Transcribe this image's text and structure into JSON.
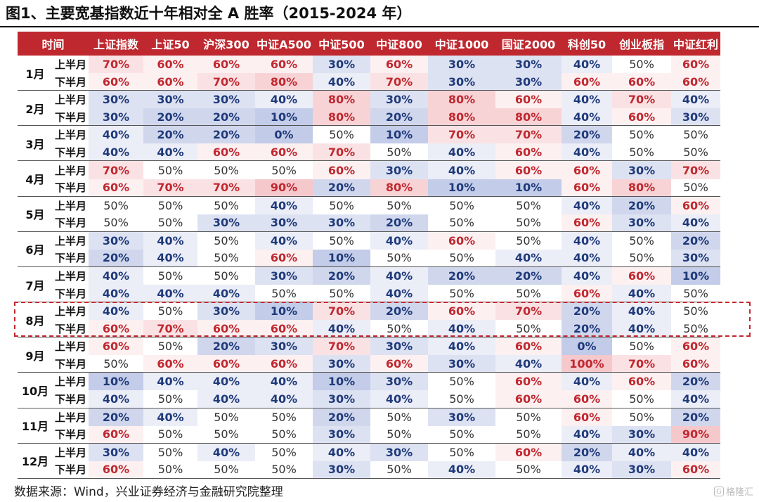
{
  "title": "图1、主要宽基指数近十年相对全 A 胜率（2015-2024 年）",
  "source": "数据来源：Wind，兴业证券经济与金融研究院整理",
  "watermark": "格隆汇",
  "colors": {
    "header_bg": "#c0282f",
    "high_text": "#c0282f",
    "low_text": "#1f3a7a",
    "neutral_text": "#333333",
    "highlight_border": "#c0282f"
  },
  "table": {
    "time_header": "时间",
    "columns": [
      "上证指数",
      "上证50",
      "沪深300",
      "中证A500",
      "中证500",
      "中证800",
      "中证1000",
      "国证2000",
      "科创50",
      "创业板指",
      "中证红利"
    ],
    "half_labels": [
      "上半月",
      "下半月"
    ],
    "highlight_month": "8月",
    "months": [
      {
        "label": "1月",
        "rows": [
          [
            "70%",
            "60%",
            "60%",
            "60%",
            "30%",
            "60%",
            "30%",
            "30%",
            "40%",
            "50%",
            "60%"
          ],
          [
            "60%",
            "60%",
            "70%",
            "80%",
            "40%",
            "70%",
            "30%",
            "30%",
            "60%",
            "60%",
            "60%"
          ]
        ]
      },
      {
        "label": "2月",
        "rows": [
          [
            "30%",
            "30%",
            "30%",
            "40%",
            "80%",
            "30%",
            "80%",
            "60%",
            "40%",
            "70%",
            "40%"
          ],
          [
            "30%",
            "20%",
            "20%",
            "10%",
            "80%",
            "20%",
            "80%",
            "80%",
            "40%",
            "60%",
            "30%"
          ]
        ]
      },
      {
        "label": "3月",
        "rows": [
          [
            "40%",
            "20%",
            "20%",
            "0%",
            "50%",
            "10%",
            "70%",
            "70%",
            "20%",
            "50%",
            "50%"
          ],
          [
            "40%",
            "40%",
            "60%",
            "60%",
            "70%",
            "50%",
            "40%",
            "60%",
            "40%",
            "50%",
            "50%"
          ]
        ]
      },
      {
        "label": "4月",
        "rows": [
          [
            "70%",
            "50%",
            "50%",
            "50%",
            "60%",
            "30%",
            "40%",
            "60%",
            "60%",
            "30%",
            "70%"
          ],
          [
            "60%",
            "70%",
            "70%",
            "90%",
            "20%",
            "80%",
            "10%",
            "10%",
            "60%",
            "80%",
            "50%"
          ]
        ]
      },
      {
        "label": "5月",
        "rows": [
          [
            "50%",
            "50%",
            "50%",
            "40%",
            "50%",
            "50%",
            "50%",
            "50%",
            "40%",
            "20%",
            "60%"
          ],
          [
            "50%",
            "50%",
            "30%",
            "30%",
            "30%",
            "20%",
            "50%",
            "50%",
            "60%",
            "30%",
            "40%"
          ]
        ]
      },
      {
        "label": "6月",
        "rows": [
          [
            "30%",
            "40%",
            "50%",
            "40%",
            "50%",
            "40%",
            "60%",
            "50%",
            "40%",
            "50%",
            "20%"
          ],
          [
            "20%",
            "40%",
            "50%",
            "60%",
            "10%",
            "50%",
            "50%",
            "40%",
            "40%",
            "50%",
            "30%"
          ]
        ]
      },
      {
        "label": "7月",
        "rows": [
          [
            "40%",
            "50%",
            "50%",
            "30%",
            "20%",
            "40%",
            "20%",
            "20%",
            "40%",
            "60%",
            "10%"
          ],
          [
            "40%",
            "40%",
            "40%",
            "50%",
            "50%",
            "40%",
            "50%",
            "50%",
            "60%",
            "40%",
            "50%"
          ]
        ]
      },
      {
        "label": "8月",
        "rows": [
          [
            "40%",
            "50%",
            "30%",
            "10%",
            "70%",
            "20%",
            "60%",
            "70%",
            "20%",
            "40%",
            "50%"
          ],
          [
            "60%",
            "70%",
            "60%",
            "60%",
            "40%",
            "50%",
            "40%",
            "50%",
            "20%",
            "40%",
            "50%"
          ]
        ]
      },
      {
        "label": "9月",
        "rows": [
          [
            "60%",
            "50%",
            "20%",
            "30%",
            "70%",
            "30%",
            "40%",
            "60%",
            "0%",
            "50%",
            "60%"
          ],
          [
            "50%",
            "60%",
            "60%",
            "60%",
            "30%",
            "60%",
            "30%",
            "40%",
            "100%",
            "70%",
            "60%"
          ]
        ]
      },
      {
        "label": "10月",
        "rows": [
          [
            "10%",
            "40%",
            "40%",
            "40%",
            "10%",
            "30%",
            "50%",
            "60%",
            "40%",
            "60%",
            "20%"
          ],
          [
            "40%",
            "50%",
            "40%",
            "40%",
            "30%",
            "40%",
            "50%",
            "60%",
            "60%",
            "50%",
            "40%"
          ]
        ]
      },
      {
        "label": "11月",
        "rows": [
          [
            "20%",
            "40%",
            "50%",
            "50%",
            "20%",
            "50%",
            "30%",
            "50%",
            "60%",
            "50%",
            "20%"
          ],
          [
            "60%",
            "50%",
            "50%",
            "50%",
            "30%",
            "50%",
            "50%",
            "50%",
            "40%",
            "30%",
            "90%"
          ]
        ]
      },
      {
        "label": "12月",
        "rows": [
          [
            "30%",
            "50%",
            "40%",
            "50%",
            "40%",
            "30%",
            "50%",
            "60%",
            "20%",
            "40%",
            "40%"
          ],
          [
            "60%",
            "50%",
            "50%",
            "50%",
            "30%",
            "50%",
            "40%",
            "50%",
            "40%",
            "30%",
            "60%"
          ]
        ]
      }
    ]
  }
}
